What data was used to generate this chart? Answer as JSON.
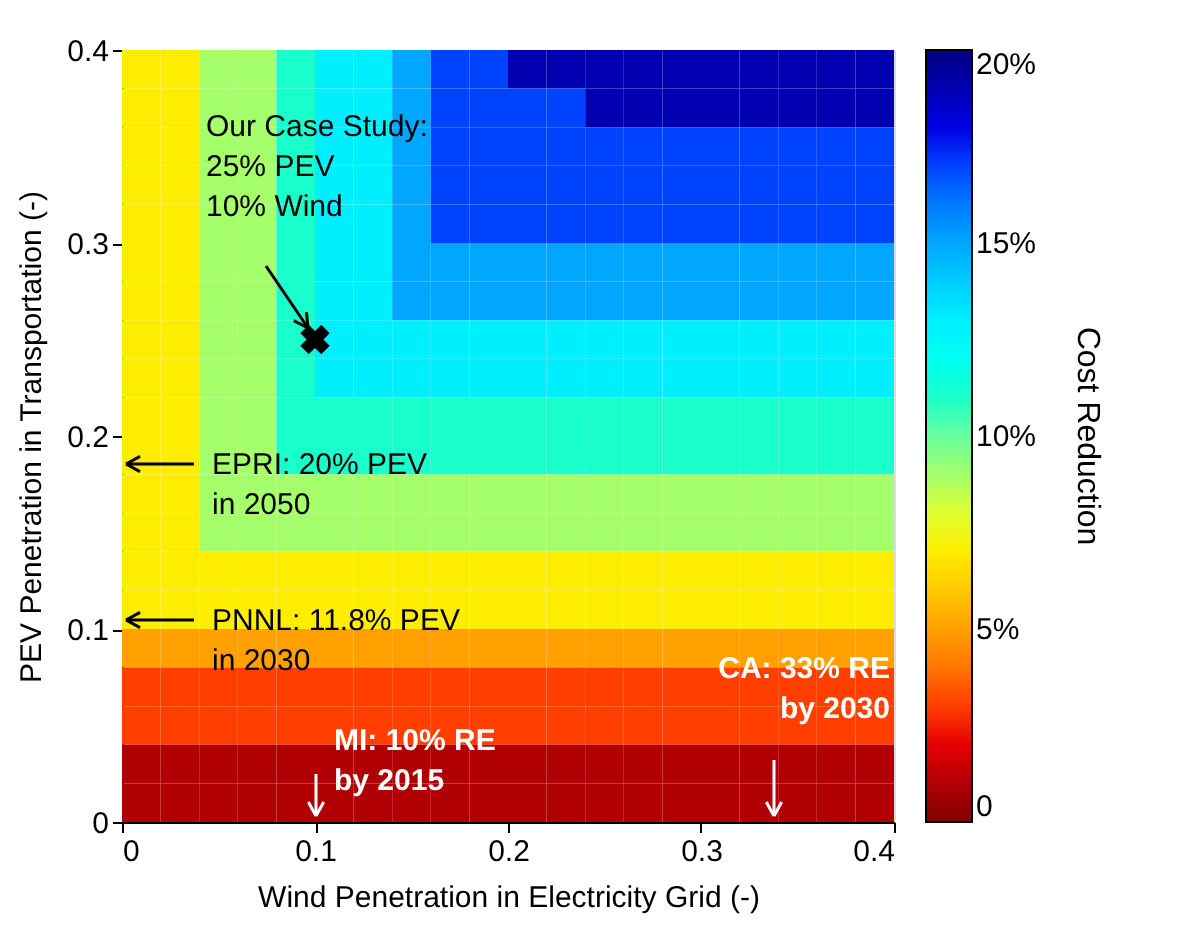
{
  "chart_data": {
    "type": "heatmap",
    "xlabel": "Wind Penetration in Electricity Grid (-)",
    "ylabel": "PEV Penetration in Transportation (-)",
    "clabel": "Cost Reduction",
    "x": [
      0.01,
      0.03,
      0.05,
      0.07,
      0.09,
      0.11,
      0.13,
      0.15,
      0.17,
      0.19,
      0.21,
      0.23,
      0.25,
      0.27,
      0.29,
      0.31,
      0.33,
      0.35,
      0.37,
      0.39
    ],
    "y": [
      0.39,
      0.37,
      0.35,
      0.33,
      0.31,
      0.29,
      0.27,
      0.25,
      0.23,
      0.21,
      0.19,
      0.17,
      0.15,
      0.13,
      0.11,
      0.09,
      0.07,
      0.05,
      0.03,
      0.01
    ],
    "cells": [
      [
        7,
        7,
        9,
        9,
        11,
        13,
        13,
        15,
        17,
        17,
        19,
        19,
        19,
        19,
        19,
        19,
        19,
        19,
        19,
        19
      ],
      [
        7,
        7,
        9,
        9,
        11,
        13,
        13,
        15,
        17,
        17,
        17,
        17,
        19,
        19,
        19,
        19,
        19,
        19,
        19,
        19
      ],
      [
        7,
        7,
        9,
        9,
        11,
        13,
        13,
        15,
        17,
        17,
        17,
        17,
        17,
        17,
        17,
        17,
        17,
        17,
        17,
        17
      ],
      [
        7,
        7,
        9,
        9,
        11,
        13,
        13,
        15,
        17,
        17,
        17,
        17,
        17,
        17,
        17,
        17,
        17,
        17,
        17,
        17
      ],
      [
        7,
        7,
        9,
        9,
        11,
        13,
        13,
        15,
        17,
        17,
        17,
        17,
        17,
        17,
        17,
        17,
        17,
        17,
        17,
        17
      ],
      [
        7,
        7,
        9,
        9,
        11,
        13,
        13,
        15,
        15,
        15,
        15,
        15,
        15,
        15,
        15,
        15,
        15,
        15,
        15,
        15
      ],
      [
        7,
        7,
        9,
        9,
        11,
        13,
        13,
        15,
        15,
        15,
        15,
        15,
        15,
        15,
        15,
        15,
        15,
        15,
        15,
        15
      ],
      [
        7,
        7,
        9,
        9,
        11,
        13,
        13,
        13,
        13,
        13,
        13,
        13,
        13,
        13,
        13,
        13,
        13,
        13,
        13,
        13
      ],
      [
        7,
        7,
        9,
        9,
        11,
        13,
        13,
        13,
        13,
        13,
        13,
        13,
        13,
        13,
        13,
        13,
        13,
        13,
        13,
        13
      ],
      [
        7,
        7,
        9,
        9,
        11,
        11,
        11,
        11,
        11,
        11,
        11,
        11,
        11,
        11,
        11,
        11,
        11,
        11,
        11,
        11
      ],
      [
        7,
        7,
        9,
        9,
        11,
        11,
        11,
        11,
        11,
        11,
        11,
        11,
        11,
        11,
        11,
        11,
        11,
        11,
        11,
        11
      ],
      [
        7,
        7,
        9,
        9,
        9,
        9,
        9,
        9,
        9,
        9,
        9,
        9,
        9,
        9,
        9,
        9,
        9,
        9,
        9,
        9
      ],
      [
        7,
        7,
        9,
        9,
        9,
        9,
        9,
        9,
        9,
        9,
        9,
        9,
        9,
        9,
        9,
        9,
        9,
        9,
        9,
        9
      ],
      [
        7,
        7,
        7,
        7,
        7,
        7,
        7,
        7,
        7,
        7,
        7,
        7,
        7,
        7,
        7,
        7,
        7,
        7,
        7,
        7
      ],
      [
        7,
        7,
        7,
        7,
        7,
        7,
        7,
        7,
        7,
        7,
        7,
        7,
        7,
        7,
        7,
        7,
        7,
        7,
        7,
        7
      ],
      [
        5,
        5,
        5,
        5,
        5,
        5,
        5,
        5,
        5,
        5,
        5,
        5,
        5,
        5,
        5,
        5,
        5,
        5,
        5,
        5
      ],
      [
        3,
        3,
        3,
        3,
        3,
        3,
        3,
        3,
        3,
        3,
        3,
        3,
        3,
        3,
        3,
        3,
        3,
        3,
        3,
        3
      ],
      [
        3,
        3,
        3,
        3,
        3,
        3,
        3,
        3,
        3,
        3,
        3,
        3,
        3,
        3,
        3,
        3,
        3,
        3,
        3,
        3
      ],
      [
        1,
        1,
        1,
        1,
        1,
        1,
        1,
        1,
        1,
        1,
        1,
        1,
        1,
        1,
        1,
        1,
        1,
        1,
        1,
        1
      ],
      [
        1,
        1,
        1,
        1,
        1,
        1,
        1,
        1,
        1,
        1,
        1,
        1,
        1,
        1,
        1,
        1,
        1,
        1,
        1,
        1
      ]
    ],
    "xlim": [
      0,
      0.4
    ],
    "ylim": [
      0,
      0.4
    ],
    "xticks": [
      0,
      0.1,
      0.2,
      0.3,
      0.4
    ],
    "yticks": [
      0,
      0.1,
      0.2,
      0.3,
      0.4
    ],
    "clim": [
      0,
      20
    ],
    "cticks": [
      0,
      {
        "value": 5,
        "label": "5%"
      },
      {
        "value": 10,
        "label": "10%"
      },
      {
        "value": 15,
        "label": "15%"
      },
      {
        "value": 20,
        "label": "20%"
      }
    ],
    "series": [
      {
        "type": "scatter",
        "x": [
          0.1
        ],
        "values": [
          0.25
        ],
        "color": "#000000",
        "marker": "cross"
      }
    ],
    "annotations": [
      "Our Case Study:\n25% PEV\n10% Wind",
      "EPRI: 20% PEV\nin 2050",
      "PNNL: 11.8% PEV\nin 2030",
      "MI: 10% RE\nby 2015",
      "CA: 33% RE\nby 2030"
    ]
  }
}
